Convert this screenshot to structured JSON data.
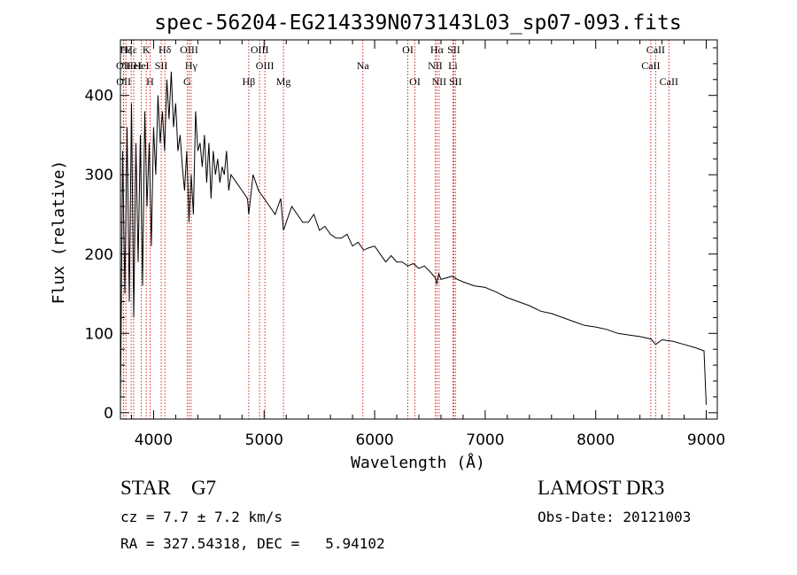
{
  "chart_data": {
    "type": "line",
    "title": "spec-56204-EG214339N073143L03_sp07-093.fits",
    "xlabel": "Wavelength (Å)",
    "ylabel": "Flux (relative)",
    "xlim": [
      3700,
      9100
    ],
    "ylim": [
      -8,
      470
    ],
    "xticks": [
      4000,
      5000,
      6000,
      7000,
      8000,
      9000
    ],
    "yticks": [
      0,
      100,
      200,
      300,
      400
    ],
    "series": [
      {
        "name": "flux",
        "x": [
          3700,
          3720,
          3740,
          3760,
          3780,
          3800,
          3820,
          3840,
          3860,
          3880,
          3900,
          3920,
          3940,
          3960,
          3980,
          4000,
          4020,
          4040,
          4060,
          4080,
          4100,
          4120,
          4140,
          4160,
          4180,
          4200,
          4220,
          4240,
          4260,
          4280,
          4300,
          4320,
          4340,
          4360,
          4380,
          4400,
          4420,
          4440,
          4460,
          4480,
          4500,
          4520,
          4540,
          4560,
          4580,
          4600,
          4620,
          4640,
          4660,
          4680,
          4700,
          4750,
          4800,
          4850,
          4861,
          4900,
          4950,
          5000,
          5050,
          5100,
          5150,
          5175,
          5200,
          5250,
          5300,
          5350,
          5400,
          5450,
          5500,
          5550,
          5600,
          5650,
          5700,
          5750,
          5800,
          5850,
          5900,
          5950,
          6000,
          6050,
          6100,
          6150,
          6200,
          6250,
          6300,
          6350,
          6400,
          6450,
          6500,
          6550,
          6563,
          6580,
          6600,
          6650,
          6700,
          6750,
          6800,
          6900,
          7000,
          7100,
          7200,
          7300,
          7400,
          7500,
          7600,
          7700,
          7800,
          7900,
          8000,
          8100,
          8200,
          8300,
          8400,
          8500,
          8542,
          8600,
          8700,
          8800,
          8900,
          8980,
          9000
        ],
        "y": [
          10,
          330,
          150,
          360,
          140,
          390,
          120,
          340,
          190,
          350,
          160,
          380,
          260,
          340,
          210,
          360,
          300,
          400,
          340,
          380,
          330,
          420,
          370,
          430,
          360,
          390,
          330,
          350,
          310,
          280,
          330,
          240,
          300,
          250,
          380,
          330,
          340,
          310,
          350,
          290,
          340,
          270,
          330,
          300,
          320,
          290,
          310,
          300,
          330,
          280,
          300,
          290,
          280,
          270,
          250,
          300,
          280,
          270,
          260,
          250,
          270,
          230,
          240,
          260,
          250,
          240,
          240,
          250,
          230,
          235,
          225,
          220,
          220,
          225,
          210,
          215,
          205,
          208,
          210,
          200,
          190,
          198,
          190,
          190,
          185,
          188,
          182,
          185,
          178,
          170,
          162,
          175,
          168,
          170,
          172,
          168,
          165,
          160,
          158,
          152,
          145,
          140,
          135,
          128,
          125,
          120,
          115,
          110,
          108,
          105,
          100,
          98,
          96,
          93,
          86,
          92,
          90,
          86,
          82,
          78,
          10
        ]
      }
    ],
    "line_markers": [
      {
        "label": "Hζ",
        "x": 3750,
        "row": 0
      },
      {
        "label": "OII",
        "x": 3727,
        "row": 1
      },
      {
        "label": "OII",
        "x": 3729,
        "row": 2
      },
      {
        "label": "Hε",
        "x": 3797,
        "row": 0
      },
      {
        "label": "HeI",
        "x": 3820,
        "row": 1
      },
      {
        "label": "HeI",
        "x": 3889,
        "row": 1
      },
      {
        "label": "K",
        "x": 3934,
        "row": 0
      },
      {
        "label": "H",
        "x": 3968,
        "row": 2
      },
      {
        "label": "SII",
        "x": 4069,
        "row": 1
      },
      {
        "label": "Hδ",
        "x": 4102,
        "row": 0
      },
      {
        "label": "OIII",
        "x": 4321,
        "row": 0
      },
      {
        "label": "Hγ",
        "x": 4340,
        "row": 1
      },
      {
        "label": "G",
        "x": 4304,
        "row": 2
      },
      {
        "label": "Hβ",
        "x": 4861,
        "row": 2
      },
      {
        "label": "OIII",
        "x": 4959,
        "row": 0
      },
      {
        "label": "OIII",
        "x": 5007,
        "row": 1
      },
      {
        "label": "Mg",
        "x": 5175,
        "row": 2
      },
      {
        "label": "Na",
        "x": 5893,
        "row": 1
      },
      {
        "label": "OI",
        "x": 6300,
        "row": 0
      },
      {
        "label": "OI",
        "x": 6364,
        "row": 2
      },
      {
        "label": "Hα",
        "x": 6563,
        "row": 0
      },
      {
        "label": "SII",
        "x": 6716,
        "row": 0
      },
      {
        "label": "NII",
        "x": 6548,
        "row": 1
      },
      {
        "label": "Li",
        "x": 6708,
        "row": 1
      },
      {
        "label": "NII",
        "x": 6583,
        "row": 2
      },
      {
        "label": "SII",
        "x": 6731,
        "row": 2
      },
      {
        "label": "CaII",
        "x": 8542,
        "row": 0
      },
      {
        "label": "CaII",
        "x": 8498,
        "row": 1
      },
      {
        "label": "CaII",
        "x": 8662,
        "row": 2
      }
    ]
  },
  "info": {
    "classification": "STAR    G7",
    "survey": "LAMOST DR3",
    "redshift": "cz = 7.7 ± 7.2 km/s",
    "obs_date": "Obs-Date: 20121003",
    "coords": "RA = 327.54318, DEC =   5.94102"
  }
}
